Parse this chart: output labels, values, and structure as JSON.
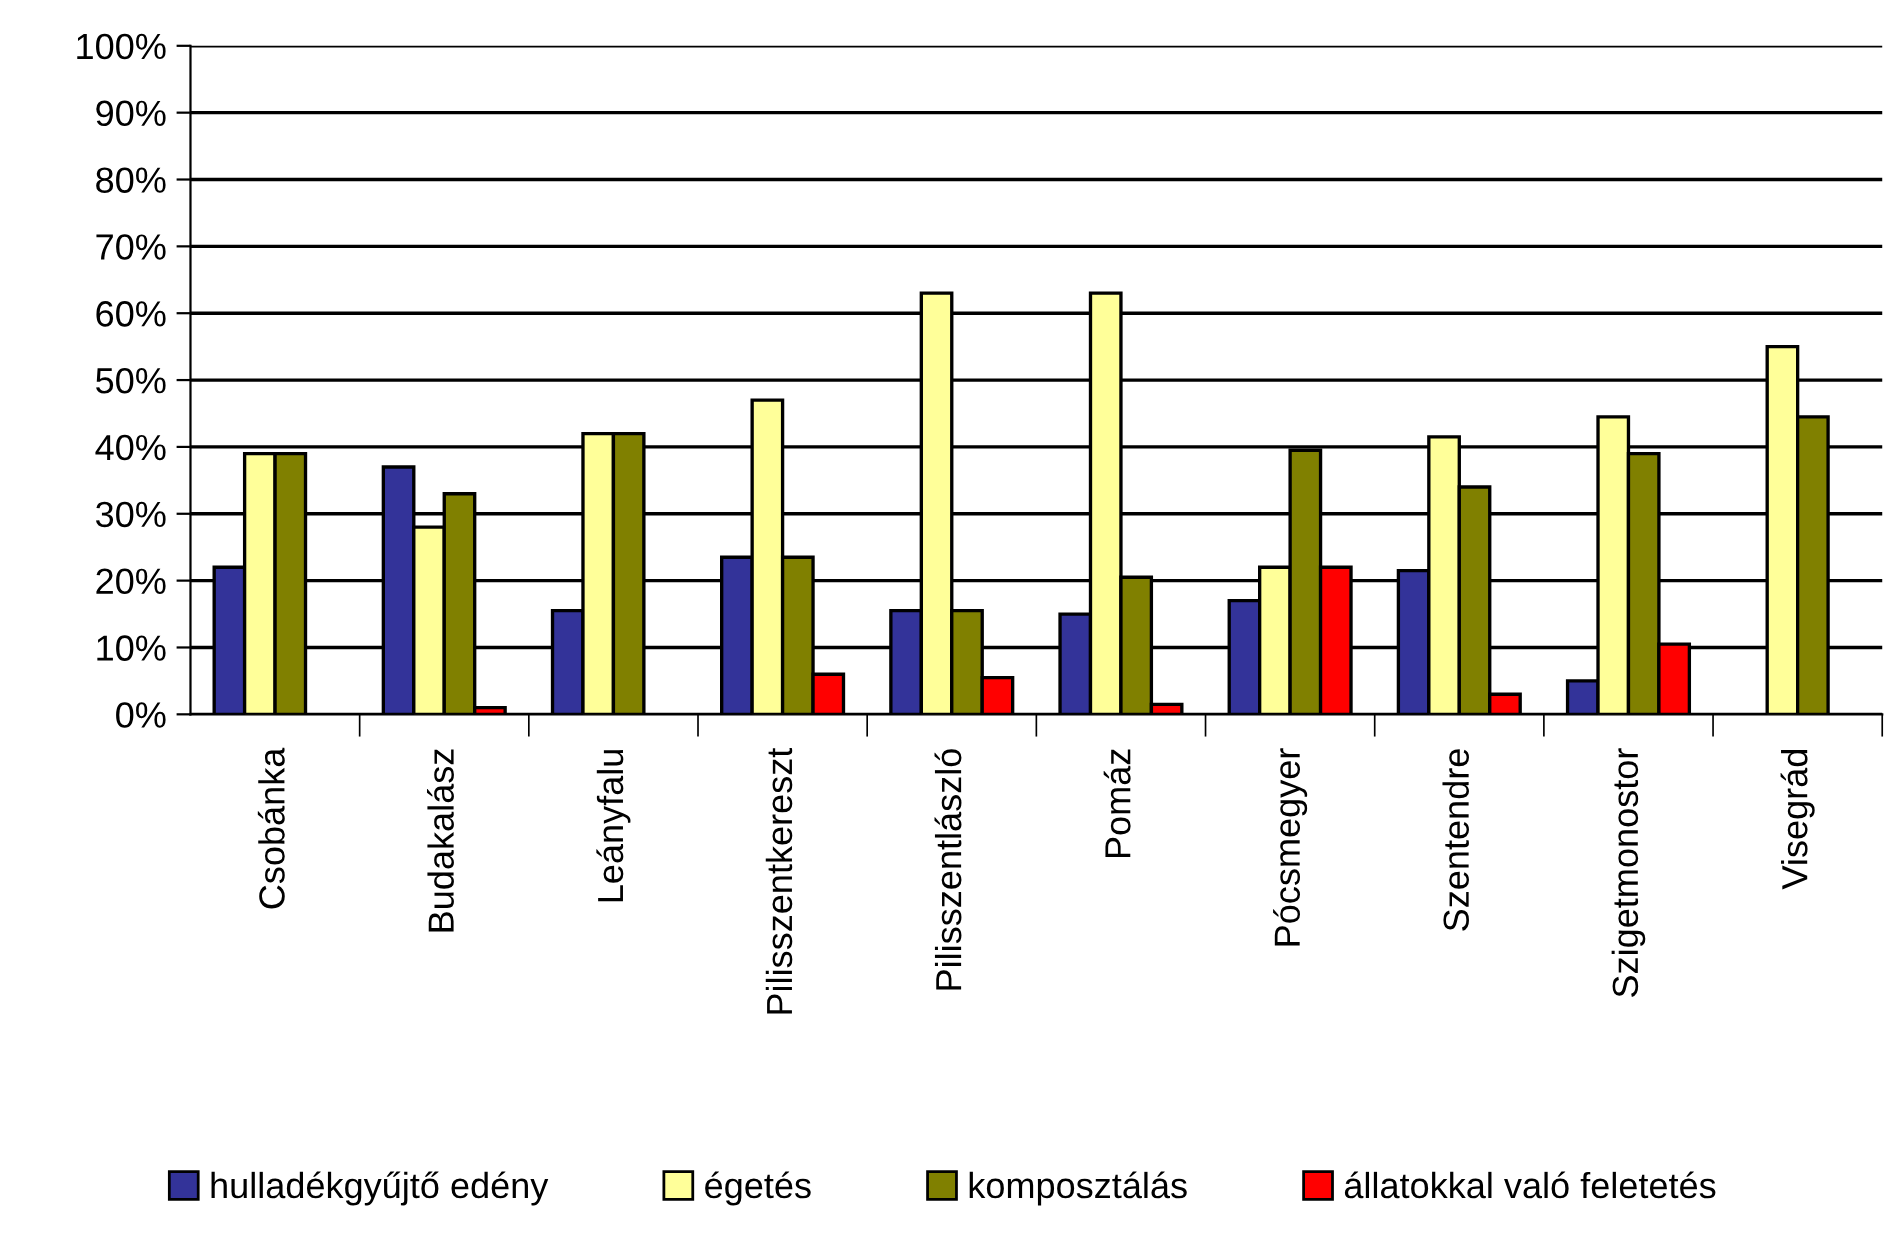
{
  "chart_data": {
    "type": "bar",
    "categories": [
      "Csobánka",
      "Budakalász",
      "Leányfalu",
      "Pilisszentkereszt",
      "Pilisszentlászló",
      "Pomáz",
      "Pócsmegyer",
      "Szentendre",
      "Szigetmonostor",
      "Visegrád"
    ],
    "series": [
      {
        "name": "hulladékgyűjtő edény",
        "color": "#333399",
        "values": [
          22,
          37,
          15.5,
          23.5,
          15.5,
          15,
          17,
          21.5,
          5,
          null
        ]
      },
      {
        "name": "égetés",
        "color": "#ffff99",
        "values": [
          39,
          28,
          42,
          47,
          63,
          63,
          22,
          41.5,
          44.5,
          55
        ]
      },
      {
        "name": "komposztálás",
        "color": "#808000",
        "values": [
          39,
          33,
          42,
          23.5,
          15.5,
          20.5,
          39.5,
          34,
          39,
          44.5
        ]
      },
      {
        "name": "állatokkal való feletetés",
        "color": "#ff0000",
        "values": [
          null,
          1,
          null,
          6,
          5.5,
          1.5,
          22,
          3,
          10.5,
          null
        ]
      }
    ],
    "ylim": [
      0,
      100
    ],
    "yticks": [
      {
        "value": 0,
        "label": "0%"
      },
      {
        "value": 10,
        "label": "10%"
      },
      {
        "value": 20,
        "label": "20%"
      },
      {
        "value": 30,
        "label": "30%"
      },
      {
        "value": 40,
        "label": "40%"
      },
      {
        "value": 50,
        "label": "50%"
      },
      {
        "value": 60,
        "label": "60%"
      },
      {
        "value": 70,
        "label": "70%"
      },
      {
        "value": 80,
        "label": "80%"
      },
      {
        "value": 90,
        "label": "90%"
      },
      {
        "value": 100,
        "label": "100%"
      }
    ],
    "grid": "y",
    "legend": "bottom"
  }
}
